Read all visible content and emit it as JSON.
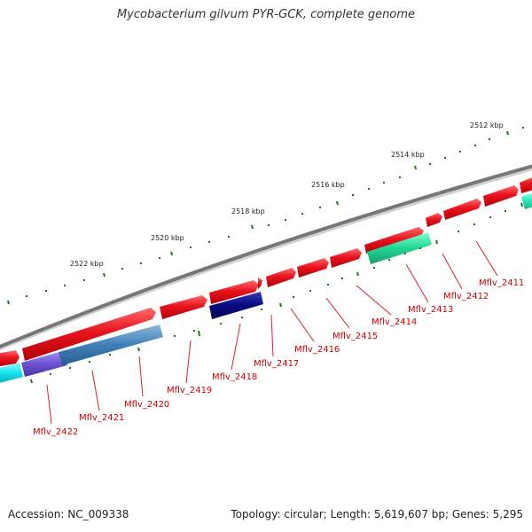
{
  "title": "Mycobacterium gilvum PYR-GCK, complete genome",
  "footer": {
    "accession": "Accession: NC_009338",
    "topology": "Topology: circular; Length: 5,619,607 bp; Genes: 5,295"
  },
  "colors": {
    "backbone": "#777777",
    "forward_gene": "#e8141e",
    "tick_green": "#1a7a1a",
    "label_line": "#dd2222",
    "label_text": "#cc0000"
  },
  "kbp_labels": [
    {
      "text": "2512 kbp",
      "value": 2512
    },
    {
      "text": "2514 kbp",
      "value": 2514
    },
    {
      "text": "2516 kbp",
      "value": 2516
    },
    {
      "text": "2518 kbp",
      "value": 2518
    },
    {
      "text": "2520 kbp",
      "value": 2520
    },
    {
      "text": "2522 kbp",
      "value": 2522
    }
  ],
  "gene_labels": [
    {
      "text": "Mflv_2411"
    },
    {
      "text": "Mflv_2412"
    },
    {
      "text": "Mflv_2413"
    },
    {
      "text": "Mflv_2414"
    },
    {
      "text": "Mflv_2415"
    },
    {
      "text": "Mflv_2416"
    },
    {
      "text": "Mflv_2417"
    },
    {
      "text": "Mflv_2418"
    },
    {
      "text": "Mflv_2419"
    },
    {
      "text": "Mflv_2420"
    },
    {
      "text": "Mflv_2421"
    },
    {
      "text": "Mflv_2422"
    }
  ]
}
